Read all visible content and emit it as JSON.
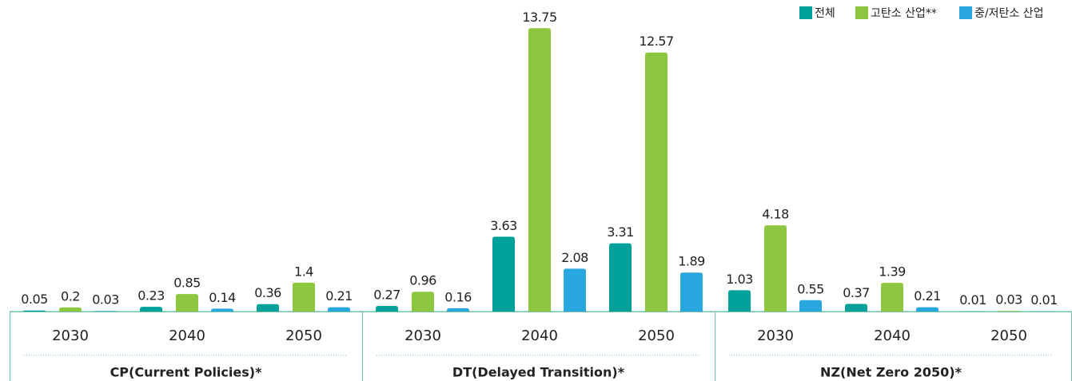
{
  "chart_data": {
    "type": "bar",
    "groups": [
      {
        "label": "CP(Current Policies)*",
        "categories": [
          "2030",
          "2040",
          "2050"
        ]
      },
      {
        "label": "DT(Delayed Transition)*",
        "categories": [
          "2030",
          "2040",
          "2050"
        ]
      },
      {
        "label": "NZ(Net Zero 2050)*",
        "categories": [
          "2030",
          "2040",
          "2050"
        ]
      }
    ],
    "series": [
      {
        "name": "전체",
        "color": "#00a19a",
        "values": [
          0.05,
          0.23,
          0.36,
          0.27,
          3.63,
          3.31,
          1.03,
          0.37,
          0.01
        ]
      },
      {
        "name": "고탄소 산업**",
        "color": "#8dc63f",
        "values": [
          0.2,
          0.85,
          1.4,
          0.96,
          13.75,
          12.57,
          4.18,
          1.39,
          0.03
        ]
      },
      {
        "name": "중/저탄소 산업",
        "color": "#29a8e0",
        "values": [
          0.03,
          0.14,
          0.21,
          0.16,
          2.08,
          1.89,
          0.55,
          0.21,
          0.01
        ]
      }
    ],
    "legend": "top-right"
  }
}
